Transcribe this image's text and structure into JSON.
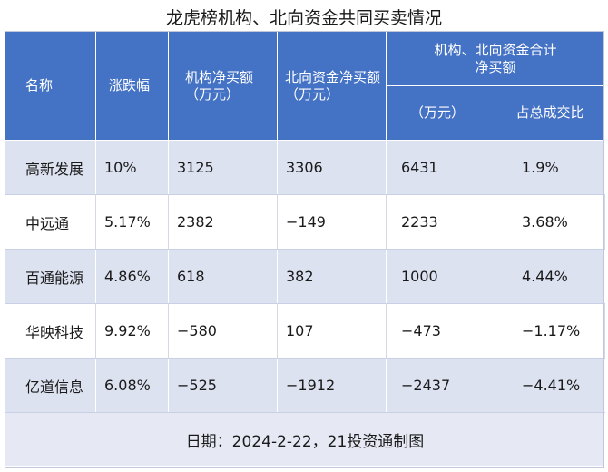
{
  "title": "龙虎榜机构、北向资金共同买卖情况",
  "headers": {
    "name": "名称",
    "change": "涨跌幅",
    "inst_net": "机构净买额（万元）",
    "north_net": "北向资金净买额（万元）",
    "combined_group": "机构、北向资金合计净买额",
    "combined_amount": "（万元）",
    "combined_ratio": "占总成交比"
  },
  "rows": [
    {
      "name": "高新发展",
      "change": "10%",
      "inst_net": "3125",
      "north_net": "3306",
      "combined": "6431",
      "ratio": "1.9%"
    },
    {
      "name": "中远通",
      "change": "5.17%",
      "inst_net": "2382",
      "north_net": "−149",
      "combined": "2233",
      "ratio": "3.68%"
    },
    {
      "name": "百通能源",
      "change": "4.86%",
      "inst_net": "618",
      "north_net": "382",
      "combined": "1000",
      "ratio": "4.44%"
    },
    {
      "name": "华映科技",
      "change": "9.92%",
      "inst_net": "−580",
      "north_net": "107",
      "combined": "−473",
      "ratio": "−1.17%"
    },
    {
      "name": "亿道信息",
      "change": "6.08%",
      "inst_net": "−525",
      "north_net": "−1912",
      "combined": "−2437",
      "ratio": "−4.41%"
    }
  ],
  "footer": "日期：2024-2-22，21投资通制图",
  "colors": {
    "header_bg": "#4472c4",
    "row_alt_bg": "#dde2f1",
    "footer_bg": "#e6e9f3"
  }
}
